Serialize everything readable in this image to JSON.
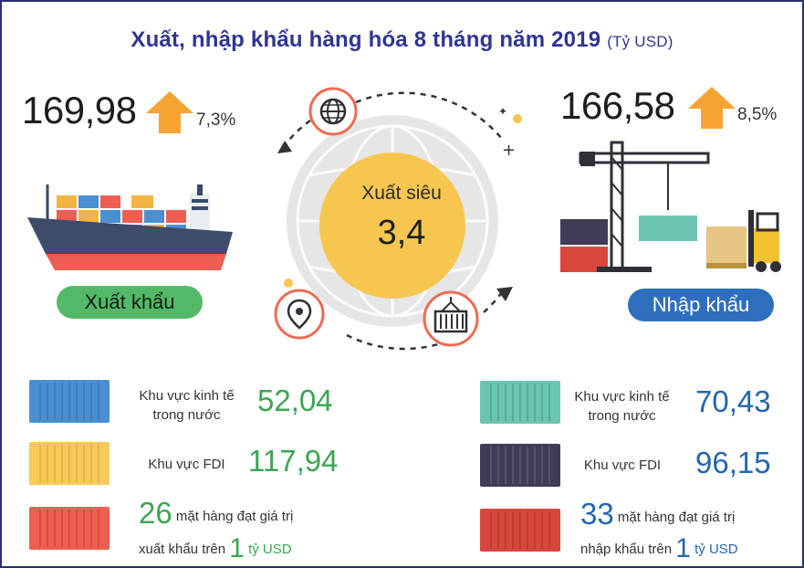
{
  "title": {
    "main": "Xuất, nhập khẩu hàng hóa 8 tháng năm 2019",
    "unit": "(Tỷ USD)"
  },
  "export": {
    "value": "169,98",
    "growth": "7,3%",
    "label": "Xuất khẩu"
  },
  "import": {
    "value": "166,58",
    "growth": "8,5%",
    "label": "Nhập khẩu"
  },
  "center": {
    "label": "Xuất siêu",
    "value": "3,4"
  },
  "export_rows": [
    {
      "label_line1": "Khu vực kinh tế",
      "label_line2": "trong nước",
      "value": "52,04",
      "color": "#4a8fd1"
    },
    {
      "label_line1": "Khu vực FDI",
      "label_line2": "",
      "value": "117,94",
      "color": "#f7c85a"
    }
  ],
  "export_items": {
    "count": "26",
    "text1": "mặt hàng đạt giá trị",
    "text2": "xuất khẩu trên",
    "amount": "1",
    "unit": "tỷ USD",
    "color": "#ee5e52"
  },
  "import_rows": [
    {
      "label_line1": "Khu vực kinh tế",
      "label_line2": "trong nước",
      "value": "70,43",
      "color": "#6cc5b3"
    },
    {
      "label_line1": "Khu vực FDI",
      "label_line2": "",
      "value": "96,15",
      "color": "#3f3c56"
    }
  ],
  "import_items": {
    "count": "33",
    "text1": "mặt hàng đạt giá trị",
    "text2": "nhập khẩu trên",
    "amount": "1",
    "unit": "tỷ USD",
    "color": "#d8473e"
  },
  "colors": {
    "title": "#2f3591",
    "arrow": "#f6a431",
    "green": "#53b968",
    "blue": "#2d6fbd",
    "circle_outer": "#dcdcdc",
    "circle_inner": "#f7c64f",
    "icon_ring": "#ee6b55"
  }
}
